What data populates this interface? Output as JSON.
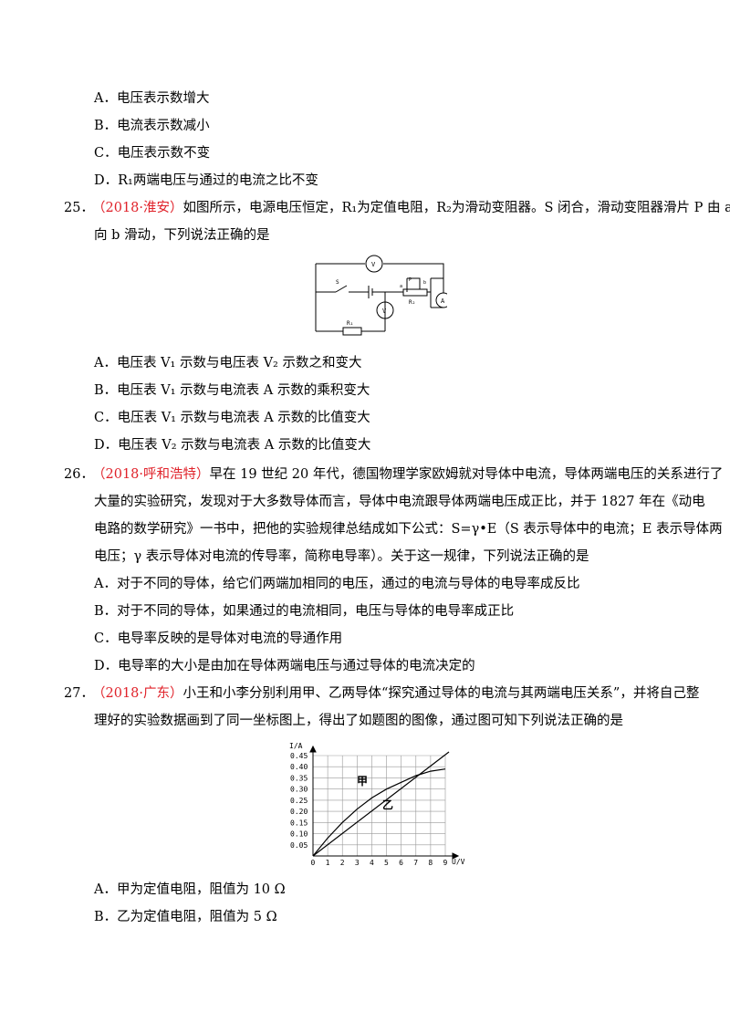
{
  "q24": {
    "options": [
      "A．电压表示数增大",
      "B．电流表示数减小",
      "C．电压表示数不变",
      "D．R₁两端电压与通过的电流之比不变"
    ]
  },
  "q25": {
    "number": "25．",
    "source": "（2018·淮安）",
    "stem_line1": "如图所示，电源电压恒定，R₁为定值电阻，R₂为滑动变阻器。S 闭合，滑动变阻器滑片 P 由 a",
    "stem_line2": "向 b 滑动，下列说法正确的是",
    "circuit_labels": {
      "v_top": "V",
      "v_mid": "V",
      "a_right": "A",
      "s": "S",
      "a": "a",
      "p": "P",
      "b": "b",
      "r2": "R₂",
      "r1": "R₁"
    },
    "options": [
      "A．电压表 V₁ 示数与电压表 V₂ 示数之和变大",
      "B．电压表 V₁ 示数与电流表 A 示数的乘积变大",
      "C．电压表 V₁ 示数与电流表 A 示数的比值变大",
      "D．电压表 V₂ 示数与电流表 A 示数的比值变大"
    ]
  },
  "q26": {
    "number": "26．",
    "source": "（2018·呼和浩特）",
    "stem_line1": "早在 19 世纪 20 年代，德国物理学家欧姆就对导体中电流，导体两端电压的关系进行了",
    "stem_line2": "大量的实验研究，发现对于大多数导体而言，导体中电流跟导体两端电压成正比，并于 1827 年在《动电",
    "stem_line3": "电路的数学研究》一书中，把他的实验规律总结成如下公式：S=γ•E（S 表示导体中的电流；E 表示导体两",
    "stem_line4": "电压；γ 表示导体对电流的传导率，简称电导率）。关于这一规律，下列说法正确的是",
    "options": [
      "A．对于不同的导体，给它们两端加相同的电压，通过的电流与导体的电导率成反比",
      "B．对于不同的导体，如果通过的电流相同，电压与导体的电导率成正比",
      "C．电导率反映的是导体对电流的导通作用",
      "D．电导率的大小是由加在导体两端电压与通过导体的电流决定的"
    ]
  },
  "q27": {
    "number": "27．",
    "source": "（2018·广东）",
    "stem_line1": "小王和小李分别利用甲、乙两导体“探究通过导体的电流与其两端电压关系”，并将自己整",
    "stem_line2": "理好的实验数据画到了同一坐标图上，得出了如题图的图像，通过图可知下列说法正确的是",
    "options": [
      "A．甲为定值电阻，阻值为 10 Ω",
      "B．乙为定值电阻，阻值为 5 Ω"
    ]
  },
  "chart_data": {
    "type": "line",
    "xlabel": "U/V",
    "ylabel": "I/A",
    "x_ticks": [
      "0",
      "1",
      "2",
      "3",
      "4",
      "5",
      "6",
      "7",
      "8",
      "9"
    ],
    "y_ticks": [
      "0.05",
      "0.10",
      "0.15",
      "0.20",
      "0.25",
      "0.30",
      "0.35",
      "0.40",
      "0.45"
    ],
    "xlim": [
      0,
      9
    ],
    "ylim": [
      0,
      0.45
    ],
    "grid": true,
    "series": [
      {
        "name": "甲",
        "x": [
          0,
          1,
          2,
          3,
          4,
          5,
          6,
          7,
          8,
          9
        ],
        "y": [
          0,
          0.08,
          0.15,
          0.21,
          0.26,
          0.3,
          0.33,
          0.36,
          0.38,
          0.39
        ]
      },
      {
        "name": "乙",
        "x": [
          0,
          9
        ],
        "y": [
          0,
          0.45
        ]
      }
    ]
  }
}
